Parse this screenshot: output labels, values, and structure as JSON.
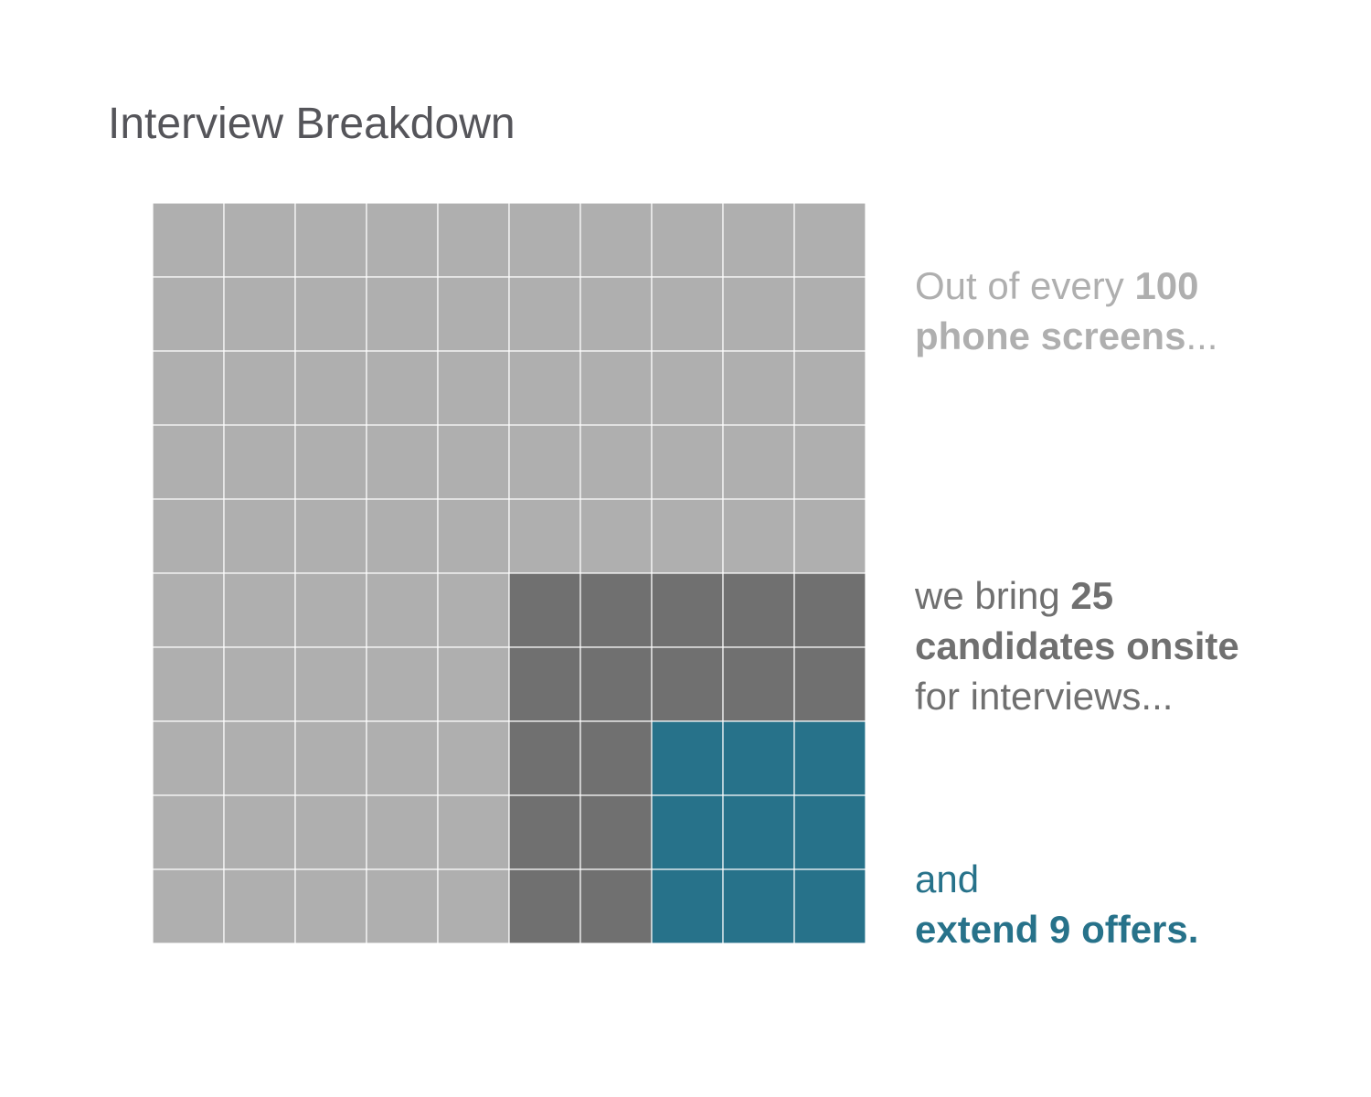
{
  "title": "Interview Breakdown",
  "annotations": {
    "step1": {
      "line1_pre": "Out of every ",
      "line1_bold": "100",
      "line2_bold": "phone screens",
      "line2_post": "..."
    },
    "step2": {
      "line1_pre": "we bring ",
      "line1_bold": "25",
      "line2_bold": "candidates onsite",
      "line3": "for interviews..."
    },
    "step3": {
      "line1": "and",
      "line2_bold": "extend 9 offers."
    }
  },
  "colors": {
    "phone_screens": "#afafaf",
    "onsite": "#707070",
    "offers": "#27728a",
    "title": "#55555a",
    "grid_line": "#ffffff"
  },
  "chart_data": {
    "type": "waffle",
    "grid": {
      "rows": 10,
      "cols": 10
    },
    "total": 100,
    "series": [
      {
        "name": "phone screens",
        "value": 100,
        "color": "#afafaf"
      },
      {
        "name": "candidates onsite",
        "value": 25,
        "color": "#707070"
      },
      {
        "name": "offers",
        "value": 9,
        "color": "#27728a"
      }
    ]
  }
}
